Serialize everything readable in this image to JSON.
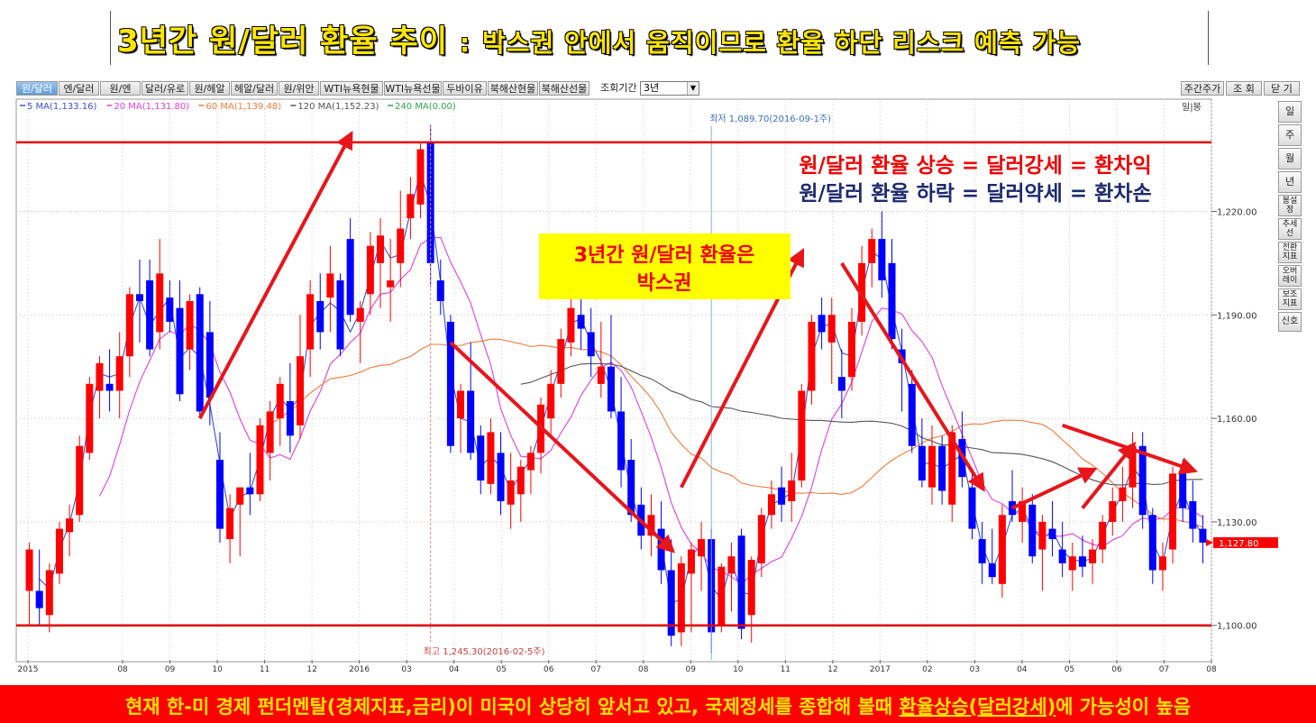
{
  "title": {
    "main": "3년간 원/달러 환율 추이",
    "colon": ":",
    "sub": "박스권 안에서 움직이므로 환율 하단 리스크 예측 가능"
  },
  "toolbar": {
    "tabs": [
      "원/달러",
      "엔/달러",
      "원/엔",
      "달러/유로",
      "원/헤알",
      "헤알/달러",
      "원/위안",
      "WTI뉴욕현물",
      "WTI뉴욕선물",
      "두바이유",
      "북해산현물",
      "북해산선물"
    ],
    "period_label": "조회기간",
    "period_value": "3년",
    "right_buttons": [
      "주간주가",
      "조 회",
      "닫 기"
    ]
  },
  "side_panel": [
    "일",
    "주",
    "월",
    "년",
    "봉설정",
    "추세선",
    "전환지표",
    "오버레이",
    "보조지표",
    "신호"
  ],
  "corner_label": "일|봉",
  "colors": {
    "up": "#ff0000",
    "down": "#0000ff",
    "ma5": "#3a4fd6",
    "ma20": "#e23fe2",
    "ma60": "#f07b3a",
    "ma120": "#555555",
    "box_line": "#e00000",
    "annotation_bg": "#ffff00",
    "price_tag": "#ff0000"
  },
  "chart_data": {
    "type": "candlestick",
    "legend": [
      {
        "name": "5 MA(1,133.16)",
        "color": "#3a4fd6"
      },
      {
        "name": "20 MA(1,131.80)",
        "color": "#e23fe2"
      },
      {
        "name": "60 MA(1,139.48)",
        "color": "#f07b3a"
      },
      {
        "name": "120 MA(1,152.23)",
        "color": "#555555"
      },
      {
        "name": "240 MA(0.00)",
        "color": "#2fa84f"
      }
    ],
    "y_ticks": [
      "1,220.00",
      "1,190.00",
      "1,160.00",
      "1,130.00",
      "1,100.00"
    ],
    "y_tick_values": [
      1220,
      1190,
      1160,
      1130,
      1100
    ],
    "y_range": [
      1090,
      1252
    ],
    "x_ticks": [
      "2015",
      "08",
      "09",
      "10",
      "11",
      "12",
      "2016",
      "03",
      "04",
      "05",
      "06",
      "07",
      "08",
      "09",
      "10",
      "11",
      "12",
      "2017",
      "02",
      "03",
      "04",
      "05",
      "06",
      "07",
      "08"
    ],
    "x_tick_pos": [
      0,
      4,
      6,
      8,
      10,
      12,
      14,
      16,
      18,
      20,
      22,
      24,
      26,
      28,
      30,
      32,
      34,
      36,
      38,
      40,
      42,
      44,
      46,
      48,
      50
    ],
    "high_marker": {
      "text": "최저 1,089.70(2016-09-1주)",
      "index": 29
    },
    "low_marker": {
      "text": "최고 1,245.30(2016-02-5주)",
      "index": 17
    },
    "current_price": "1,127.80",
    "box_lines": [
      1240,
      1100
    ],
    "candles": [
      {
        "o": 1110,
        "h": 1124,
        "l": 1100,
        "c": 1122
      },
      {
        "o": 1110,
        "h": 1122,
        "l": 1100,
        "c": 1105
      },
      {
        "o": 1103,
        "h": 1118,
        "l": 1098,
        "c": 1116
      },
      {
        "o": 1115,
        "h": 1130,
        "l": 1112,
        "c": 1128
      },
      {
        "o": 1127,
        "h": 1135,
        "l": 1120,
        "c": 1131
      },
      {
        "o": 1132,
        "h": 1155,
        "l": 1130,
        "c": 1152
      },
      {
        "o": 1150,
        "h": 1172,
        "l": 1148,
        "c": 1170
      },
      {
        "o": 1168,
        "h": 1178,
        "l": 1160,
        "c": 1176
      },
      {
        "o": 1170,
        "h": 1180,
        "l": 1162,
        "c": 1168
      },
      {
        "o": 1168,
        "h": 1185,
        "l": 1160,
        "c": 1178
      },
      {
        "o": 1178,
        "h": 1198,
        "l": 1172,
        "c": 1196
      },
      {
        "o": 1196,
        "h": 1206,
        "l": 1182,
        "c": 1194
      },
      {
        "o": 1200,
        "h": 1206,
        "l": 1178,
        "c": 1180
      },
      {
        "o": 1185,
        "h": 1212,
        "l": 1180,
        "c": 1202
      },
      {
        "o": 1195,
        "h": 1200,
        "l": 1185,
        "c": 1188
      },
      {
        "o": 1192,
        "h": 1200,
        "l": 1165,
        "c": 1167
      },
      {
        "o": 1180,
        "h": 1196,
        "l": 1174,
        "c": 1194
      },
      {
        "o": 1196,
        "h": 1198,
        "l": 1160,
        "c": 1162
      },
      {
        "o": 1185,
        "h": 1194,
        "l": 1158,
        "c": 1166
      },
      {
        "o": 1148,
        "h": 1156,
        "l": 1124,
        "c": 1128
      },
      {
        "o": 1125,
        "h": 1138,
        "l": 1118,
        "c": 1134
      },
      {
        "o": 1135,
        "h": 1140,
        "l": 1120,
        "c": 1140
      },
      {
        "o": 1140,
        "h": 1150,
        "l": 1132,
        "c": 1138
      },
      {
        "o": 1138,
        "h": 1160,
        "l": 1136,
        "c": 1158
      },
      {
        "o": 1150,
        "h": 1165,
        "l": 1142,
        "c": 1162
      },
      {
        "o": 1160,
        "h": 1172,
        "l": 1152,
        "c": 1170
      },
      {
        "o": 1165,
        "h": 1176,
        "l": 1150,
        "c": 1155
      },
      {
        "o": 1158,
        "h": 1190,
        "l": 1154,
        "c": 1178
      },
      {
        "o": 1180,
        "h": 1200,
        "l": 1172,
        "c": 1196
      },
      {
        "o": 1194,
        "h": 1202,
        "l": 1180,
        "c": 1185
      },
      {
        "o": 1195,
        "h": 1210,
        "l": 1185,
        "c": 1202
      },
      {
        "o": 1200,
        "h": 1202,
        "l": 1178,
        "c": 1180
      },
      {
        "o": 1212,
        "h": 1218,
        "l": 1188,
        "c": 1190
      },
      {
        "o": 1188,
        "h": 1194,
        "l": 1176,
        "c": 1192
      },
      {
        "o": 1196,
        "h": 1214,
        "l": 1190,
        "c": 1210
      },
      {
        "o": 1205,
        "h": 1218,
        "l": 1192,
        "c": 1213
      },
      {
        "o": 1198,
        "h": 1212,
        "l": 1188,
        "c": 1200
      },
      {
        "o": 1205,
        "h": 1226,
        "l": 1198,
        "c": 1215
      },
      {
        "o": 1218,
        "h": 1230,
        "l": 1212,
        "c": 1225
      },
      {
        "o": 1222,
        "h": 1240,
        "l": 1218,
        "c": 1238
      },
      {
        "o": 1240,
        "h": 1245,
        "l": 1198,
        "c": 1205
      },
      {
        "o": 1200,
        "h": 1206,
        "l": 1190,
        "c": 1194
      },
      {
        "o": 1188,
        "h": 1190,
        "l": 1150,
        "c": 1152
      },
      {
        "o": 1160,
        "h": 1170,
        "l": 1150,
        "c": 1168
      },
      {
        "o": 1168,
        "h": 1182,
        "l": 1148,
        "c": 1150
      },
      {
        "o": 1155,
        "h": 1158,
        "l": 1138,
        "c": 1142
      },
      {
        "o": 1141,
        "h": 1160,
        "l": 1138,
        "c": 1156
      },
      {
        "o": 1150,
        "h": 1156,
        "l": 1132,
        "c": 1136
      },
      {
        "o": 1135,
        "h": 1150,
        "l": 1128,
        "c": 1142
      },
      {
        "o": 1138,
        "h": 1148,
        "l": 1130,
        "c": 1146
      },
      {
        "o": 1145,
        "h": 1152,
        "l": 1138,
        "c": 1150
      },
      {
        "o": 1150,
        "h": 1166,
        "l": 1144,
        "c": 1164
      },
      {
        "o": 1160,
        "h": 1174,
        "l": 1155,
        "c": 1170
      },
      {
        "o": 1170,
        "h": 1186,
        "l": 1166,
        "c": 1183
      },
      {
        "o": 1182,
        "h": 1200,
        "l": 1178,
        "c": 1192
      },
      {
        "o": 1190,
        "h": 1196,
        "l": 1180,
        "c": 1186
      },
      {
        "o": 1185,
        "h": 1192,
        "l": 1172,
        "c": 1178
      },
      {
        "o": 1170,
        "h": 1188,
        "l": 1166,
        "c": 1175
      },
      {
        "o": 1175,
        "h": 1190,
        "l": 1160,
        "c": 1162
      },
      {
        "o": 1162,
        "h": 1172,
        "l": 1140,
        "c": 1145
      },
      {
        "o": 1148,
        "h": 1154,
        "l": 1130,
        "c": 1132
      },
      {
        "o": 1135,
        "h": 1140,
        "l": 1122,
        "c": 1126
      },
      {
        "o": 1126,
        "h": 1138,
        "l": 1120,
        "c": 1132
      },
      {
        "o": 1128,
        "h": 1136,
        "l": 1112,
        "c": 1116
      },
      {
        "o": 1116,
        "h": 1125,
        "l": 1094,
        "c": 1097
      },
      {
        "o": 1098,
        "h": 1120,
        "l": 1094,
        "c": 1118
      },
      {
        "o": 1115,
        "h": 1124,
        "l": 1098,
        "c": 1122
      },
      {
        "o": 1120,
        "h": 1130,
        "l": 1110,
        "c": 1125
      },
      {
        "o": 1125,
        "h": 1128,
        "l": 1092,
        "c": 1098
      },
      {
        "o": 1100,
        "h": 1118,
        "l": 1098,
        "c": 1117
      },
      {
        "o": 1115,
        "h": 1124,
        "l": 1104,
        "c": 1120
      },
      {
        "o": 1126,
        "h": 1128,
        "l": 1096,
        "c": 1099
      },
      {
        "o": 1103,
        "h": 1120,
        "l": 1095,
        "c": 1119
      },
      {
        "o": 1118,
        "h": 1134,
        "l": 1114,
        "c": 1132
      },
      {
        "o": 1132,
        "h": 1142,
        "l": 1128,
        "c": 1138
      },
      {
        "o": 1140,
        "h": 1146,
        "l": 1130,
        "c": 1135
      },
      {
        "o": 1136,
        "h": 1150,
        "l": 1130,
        "c": 1142
      },
      {
        "o": 1142,
        "h": 1170,
        "l": 1140,
        "c": 1168
      },
      {
        "o": 1168,
        "h": 1190,
        "l": 1164,
        "c": 1188
      },
      {
        "o": 1190,
        "h": 1195,
        "l": 1180,
        "c": 1185
      },
      {
        "o": 1182,
        "h": 1195,
        "l": 1170,
        "c": 1190
      },
      {
        "o": 1172,
        "h": 1180,
        "l": 1160,
        "c": 1168
      },
      {
        "o": 1172,
        "h": 1192,
        "l": 1168,
        "c": 1188
      },
      {
        "o": 1188,
        "h": 1210,
        "l": 1184,
        "c": 1205
      },
      {
        "o": 1205,
        "h": 1215,
        "l": 1198,
        "c": 1212
      },
      {
        "o": 1212,
        "h": 1220,
        "l": 1195,
        "c": 1200
      },
      {
        "o": 1205,
        "h": 1212,
        "l": 1180,
        "c": 1183
      },
      {
        "o": 1180,
        "h": 1186,
        "l": 1162,
        "c": 1176
      },
      {
        "o": 1170,
        "h": 1174,
        "l": 1150,
        "c": 1152
      },
      {
        "o": 1152,
        "h": 1160,
        "l": 1140,
        "c": 1142
      },
      {
        "o": 1140,
        "h": 1158,
        "l": 1135,
        "c": 1152
      },
      {
        "o": 1152,
        "h": 1155,
        "l": 1135,
        "c": 1139
      },
      {
        "o": 1135,
        "h": 1158,
        "l": 1130,
        "c": 1156
      },
      {
        "o": 1154,
        "h": 1162,
        "l": 1140,
        "c": 1143
      },
      {
        "o": 1140,
        "h": 1145,
        "l": 1125,
        "c": 1128
      },
      {
        "o": 1125,
        "h": 1130,
        "l": 1112,
        "c": 1118
      },
      {
        "o": 1118,
        "h": 1128,
        "l": 1112,
        "c": 1114
      },
      {
        "o": 1112,
        "h": 1135,
        "l": 1108,
        "c": 1132
      },
      {
        "o": 1136,
        "h": 1145,
        "l": 1130,
        "c": 1132
      },
      {
        "o": 1130,
        "h": 1140,
        "l": 1124,
        "c": 1136
      },
      {
        "o": 1135,
        "h": 1138,
        "l": 1118,
        "c": 1120
      },
      {
        "o": 1122,
        "h": 1132,
        "l": 1110,
        "c": 1130
      },
      {
        "o": 1128,
        "h": 1136,
        "l": 1120,
        "c": 1125
      },
      {
        "o": 1122,
        "h": 1130,
        "l": 1114,
        "c": 1118
      },
      {
        "o": 1116,
        "h": 1124,
        "l": 1110,
        "c": 1120
      },
      {
        "o": 1120,
        "h": 1126,
        "l": 1114,
        "c": 1117
      },
      {
        "o": 1118,
        "h": 1125,
        "l": 1112,
        "c": 1122
      },
      {
        "o": 1122,
        "h": 1132,
        "l": 1118,
        "c": 1130
      },
      {
        "o": 1130,
        "h": 1140,
        "l": 1126,
        "c": 1136
      },
      {
        "o": 1136,
        "h": 1146,
        "l": 1130,
        "c": 1140
      },
      {
        "o": 1140,
        "h": 1156,
        "l": 1134,
        "c": 1152
      },
      {
        "o": 1152,
        "h": 1156,
        "l": 1128,
        "c": 1132
      },
      {
        "o": 1132,
        "h": 1134,
        "l": 1112,
        "c": 1116
      },
      {
        "o": 1116,
        "h": 1124,
        "l": 1110,
        "c": 1120
      },
      {
        "o": 1122,
        "h": 1146,
        "l": 1118,
        "c": 1144
      },
      {
        "o": 1144,
        "h": 1148,
        "l": 1130,
        "c": 1134
      },
      {
        "o": 1136,
        "h": 1142,
        "l": 1124,
        "c": 1128
      },
      {
        "o": 1128,
        "h": 1132,
        "l": 1118,
        "c": 1124
      }
    ]
  },
  "annotations": {
    "up_text": "원/달러 환율 상승 = 달러강세 = 환차익",
    "down_text": "원/달러 환율 하락 = 달러약세 = 환차손",
    "box_text_1": "3년간 원/달러 환율은",
    "box_text_2": "박스권"
  },
  "banner": {
    "text_before": "현재 한-미 경제 펀더멘탈(경제지표,금리)이 미국이 상당히 앞서고 있고, 국제정세를 종합해 볼때 ",
    "text_underlined": "환율상승(달러강세)",
    "text_after": "에 가능성이 높음"
  }
}
